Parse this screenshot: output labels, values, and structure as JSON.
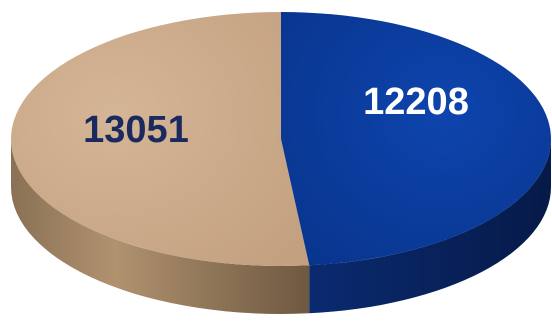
{
  "chart_data": {
    "type": "pie",
    "style": "3d",
    "slices": [
      {
        "label": "12208",
        "value": 12208,
        "color": "#0a3a9a",
        "label_color": "#ffffff"
      },
      {
        "label": "13051",
        "value": 13051,
        "color": "#caa98a",
        "label_color": "#1a2a5e"
      }
    ],
    "title": "",
    "legend": "none"
  }
}
